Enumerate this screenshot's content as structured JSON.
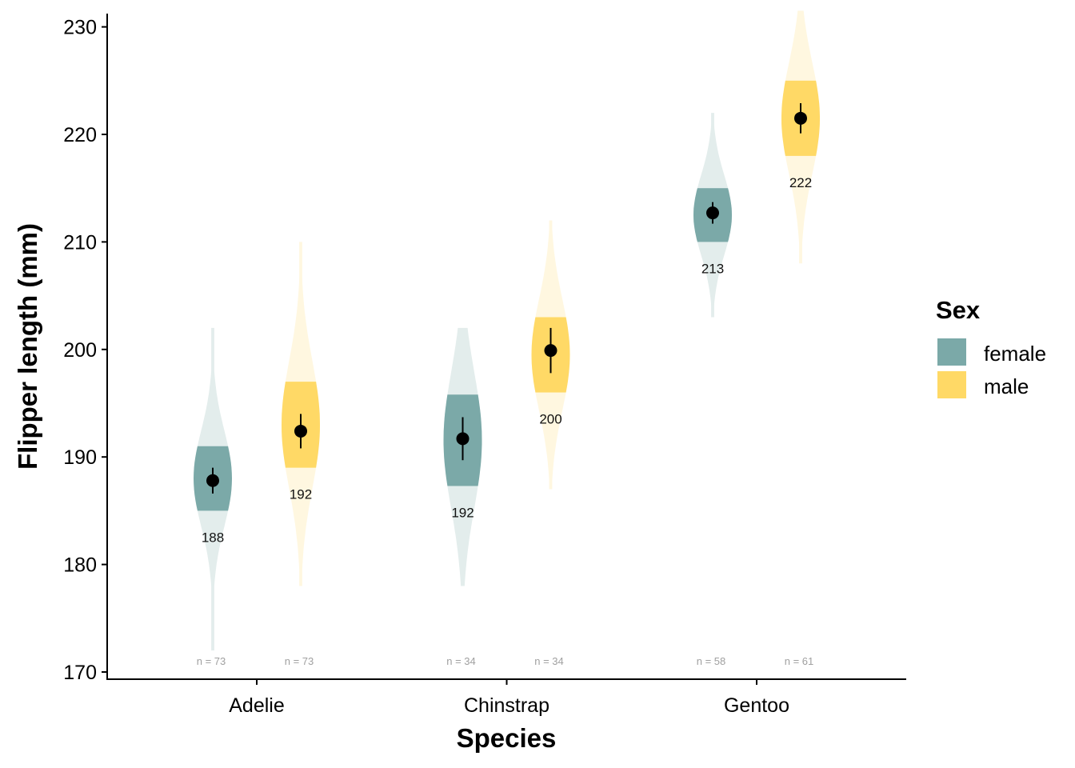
{
  "chart_data": {
    "type": "violin",
    "xlabel": "Species",
    "ylabel": "Flipper length (mm)",
    "ylim": [
      169.5,
      231.5
    ],
    "y_ticks": [
      "170",
      "180",
      "190",
      "200",
      "210",
      "220",
      "230"
    ],
    "categories": [
      "Adelie",
      "Chinstrap",
      "Gentoo"
    ],
    "legend": {
      "title": "Sex",
      "position": "right",
      "items": [
        {
          "label": "female",
          "color": "#7BA9A8"
        },
        {
          "label": "male",
          "color": "#FFD966"
        }
      ]
    },
    "grid": false,
    "series": [
      {
        "name": "female",
        "color": "#7BA9A8",
        "light_color": "#E3EDEC",
        "groups": [
          {
            "species": "Adelie",
            "min": 172,
            "max": 202,
            "q1": 185,
            "q3": 191,
            "mean": 187.8,
            "ci_low": 186.6,
            "ci_high": 189.0,
            "label": "188",
            "n_label": "n = 73"
          },
          {
            "species": "Chinstrap",
            "min": 178,
            "max": 202,
            "q1": 187.3,
            "q3": 195.8,
            "mean": 191.7,
            "ci_low": 189.7,
            "ci_high": 193.7,
            "label": "192",
            "n_label": "n = 34"
          },
          {
            "species": "Gentoo",
            "min": 203,
            "max": 222,
            "q1": 210,
            "q3": 215,
            "mean": 212.7,
            "ci_low": 211.7,
            "ci_high": 213.7,
            "label": "213",
            "n_label": "n = 58"
          }
        ]
      },
      {
        "name": "male",
        "color": "#FFD966",
        "light_color": "#FFF7E0",
        "groups": [
          {
            "species": "Adelie",
            "min": 178,
            "max": 210,
            "q1": 189,
            "q3": 197,
            "mean": 192.4,
            "ci_low": 190.8,
            "ci_high": 194.0,
            "label": "192",
            "n_label": "n = 73"
          },
          {
            "species": "Chinstrap",
            "min": 187,
            "max": 212,
            "q1": 196,
            "q3": 203,
            "mean": 199.9,
            "ci_low": 197.8,
            "ci_high": 202.0,
            "label": "200",
            "n_label": "n = 34"
          },
          {
            "species": "Gentoo",
            "min": 208,
            "max": 231.5,
            "q1": 218,
            "q3": 225,
            "mean": 221.5,
            "ci_low": 220.1,
            "ci_high": 222.9,
            "label": "222",
            "n_label": "n = 61"
          }
        ]
      }
    ]
  }
}
